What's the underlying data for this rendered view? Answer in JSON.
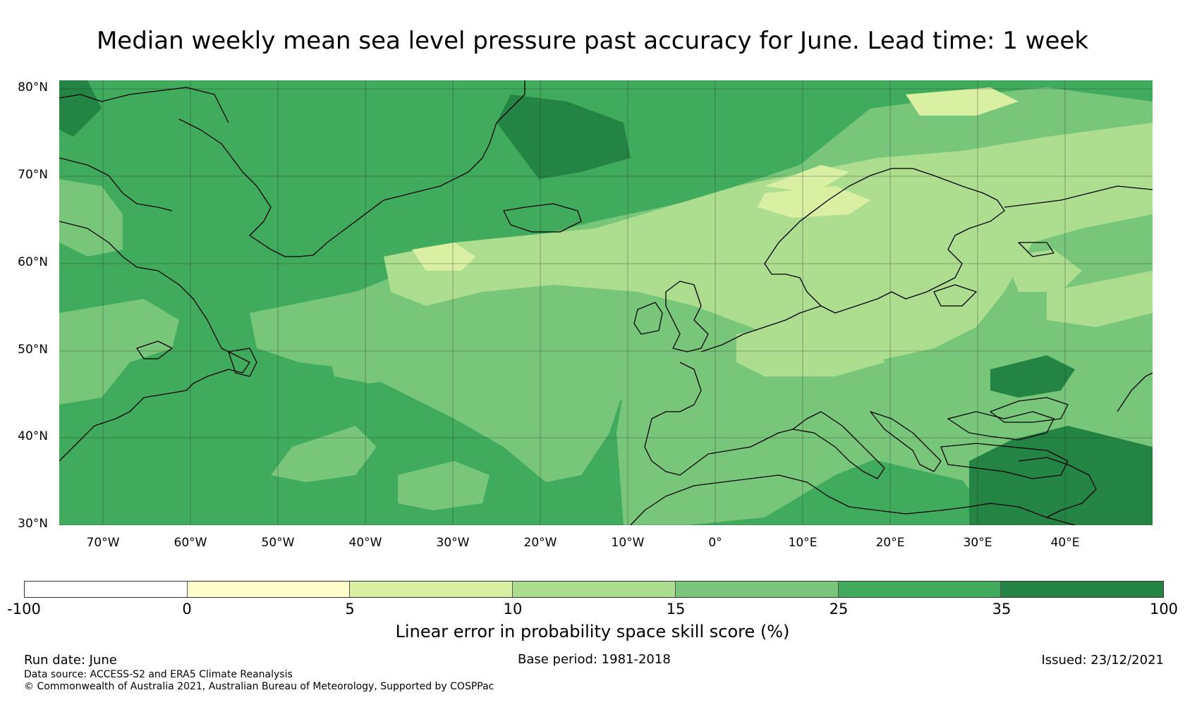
{
  "title": "Median weekly mean sea level pressure past accuracy for June. Lead time: 1 week",
  "map": {
    "lat_labels": [
      "80°N",
      "70°N",
      "60°N",
      "50°N",
      "40°N",
      "30°N"
    ],
    "lon_labels": [
      "70°W",
      "60°W",
      "50°W",
      "40°W",
      "30°W",
      "20°W",
      "10°W",
      "0°",
      "10°E",
      "20°E",
      "30°E",
      "40°E"
    ],
    "extent": {
      "lon_min": -75,
      "lon_max": 50,
      "lat_min": 30,
      "lat_max": 81
    },
    "gridlines": true
  },
  "colorbar": {
    "label": "Linear error in probability space skill score (%)",
    "ticks": [
      "-100",
      "0",
      "5",
      "10",
      "15",
      "25",
      "35",
      "100"
    ],
    "colors": [
      "#ffffff",
      "#ffffcc",
      "#d9f0a3",
      "#addd8e",
      "#78c679",
      "#41ab5d",
      "#238443"
    ]
  },
  "footer": {
    "run_date": "Run date: June",
    "base_period": "Base period: 1981-2018",
    "issued": "Issued: 23/12/2021",
    "data_source": "Data source: ACCESS-S2 and ERA5 Climate Reanalysis",
    "copyright": "© Commonwealth of Australia 2021, Australian Bureau of Meteorology, Supported by COSPPac"
  }
}
